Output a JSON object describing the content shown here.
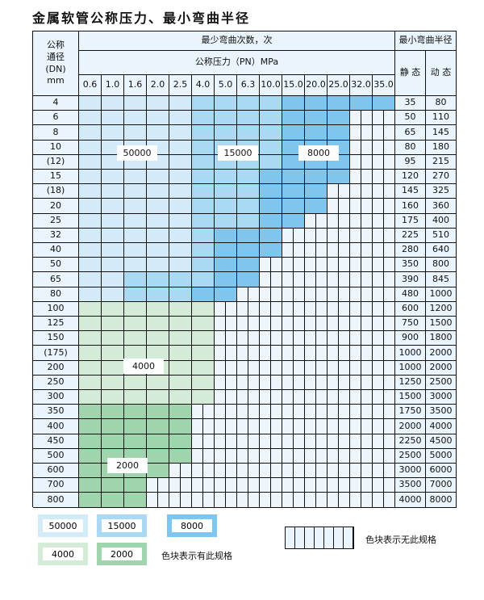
{
  "title": "金属软管公称压力、最小弯曲半径",
  "header": {
    "dn_label": "公称\n通径\n(DN)\nmm",
    "bend_count": "最少弯曲次数，次",
    "pressure": "公称压力（PN）MPa",
    "min_radius": "最小弯曲半径",
    "static": "静 态",
    "dynamic": "动 态",
    "pn_values": [
      "0.6",
      "1.0",
      "1.6",
      "2.0",
      "2.5",
      "4.0",
      "5.0",
      "6.3",
      "10.0",
      "15.0",
      "20.0",
      "25.0",
      "32.0",
      "35.0"
    ]
  },
  "colors": {
    "A": "#d3ebf8",
    "B": "#a9d9f3",
    "C": "#7ec6ee",
    "D": "#d4ebd8",
    "E": "#9fd4ac",
    "X": "#eef6fc"
  },
  "region_values": {
    "A": "50000",
    "B": "15000",
    "C": "8000",
    "D": "4000",
    "E": "2000"
  },
  "rows": [
    {
      "dn": "4",
      "static": "35",
      "dynamic": "80",
      "cells": "AAAAABBBBCCCCC"
    },
    {
      "dn": "6",
      "static": "50",
      "dynamic": "110",
      "cells": "AAAAABBBBCCCXX"
    },
    {
      "dn": "8",
      "static": "65",
      "dynamic": "145",
      "cells": "AAAAABBBBCCCXX"
    },
    {
      "dn": "10",
      "static": "80",
      "dynamic": "180",
      "cells": "AAAAABBBBCCCXX"
    },
    {
      "dn": "(12)",
      "static": "95",
      "dynamic": "215",
      "cells": "AAAAABBBBCCCXX"
    },
    {
      "dn": "15",
      "static": "120",
      "dynamic": "270",
      "cells": "AAAAABBBCCCCXX"
    },
    {
      "dn": "(18)",
      "static": "145",
      "dynamic": "325",
      "cells": "AAAAABBBCCCXXX"
    },
    {
      "dn": "20",
      "static": "160",
      "dynamic": "360",
      "cells": "AAAAABBBCCCXXX"
    },
    {
      "dn": "25",
      "static": "175",
      "dynamic": "400",
      "cells": "AAAAABBBCCXXXX"
    },
    {
      "dn": "32",
      "static": "225",
      "dynamic": "510",
      "cells": "AAAAABCCCXXXXX"
    },
    {
      "dn": "40",
      "static": "280",
      "dynamic": "640",
      "cells": "AAAAABCCCXXXXX"
    },
    {
      "dn": "50",
      "static": "350",
      "dynamic": "800",
      "cells": "AAAAABCCXXXXXX"
    },
    {
      "dn": "65",
      "static": "390",
      "dynamic": "845",
      "cells": "AABBBBCCXXXXXX"
    },
    {
      "dn": "80",
      "static": "480",
      "dynamic": "1000",
      "cells": "AABBBCCXXXXXXX"
    },
    {
      "dn": "100",
      "static": "600",
      "dynamic": "1200",
      "cells": "DDDDDDXXXXXXXX"
    },
    {
      "dn": "125",
      "static": "750",
      "dynamic": "1500",
      "cells": "DDDDDDXXXXXXXX"
    },
    {
      "dn": "150",
      "static": "900",
      "dynamic": "1800",
      "cells": "DDDDDDXXXXXXXX"
    },
    {
      "dn": "(175)",
      "static": "1000",
      "dynamic": "2000",
      "cells": "DDDDDDXXXXXXXX"
    },
    {
      "dn": "200",
      "static": "1000",
      "dynamic": "2000",
      "cells": "DDDDDDXXXXXXXX"
    },
    {
      "dn": "250",
      "static": "1250",
      "dynamic": "2500",
      "cells": "DDDDDDXXXXXXXX"
    },
    {
      "dn": "300",
      "static": "1500",
      "dynamic": "3000",
      "cells": "DDDDDDXXXXXXXX"
    },
    {
      "dn": "350",
      "static": "1750",
      "dynamic": "3500",
      "cells": "EEEEEXXXXXXXXX"
    },
    {
      "dn": "400",
      "static": "2000",
      "dynamic": "4000",
      "cells": "EEEEEXXXXXXXXX"
    },
    {
      "dn": "450",
      "static": "2250",
      "dynamic": "4500",
      "cells": "EEEEEXXXXXXXXX"
    },
    {
      "dn": "500",
      "static": "2500",
      "dynamic": "5000",
      "cells": "EEEEEXXXXXXXXX"
    },
    {
      "dn": "600",
      "static": "3000",
      "dynamic": "6000",
      "cells": "EEEEXXXXXXXXXX"
    },
    {
      "dn": "700",
      "static": "3500",
      "dynamic": "7000",
      "cells": "EEEXXXXXXXXXXX"
    },
    {
      "dn": "800",
      "static": "4000",
      "dynamic": "8000",
      "cells": "EEEXXXXXXXXXXX"
    }
  ],
  "legend": {
    "has_spec": "色块表示有此规格",
    "no_spec": "色块表示无此规格"
  }
}
